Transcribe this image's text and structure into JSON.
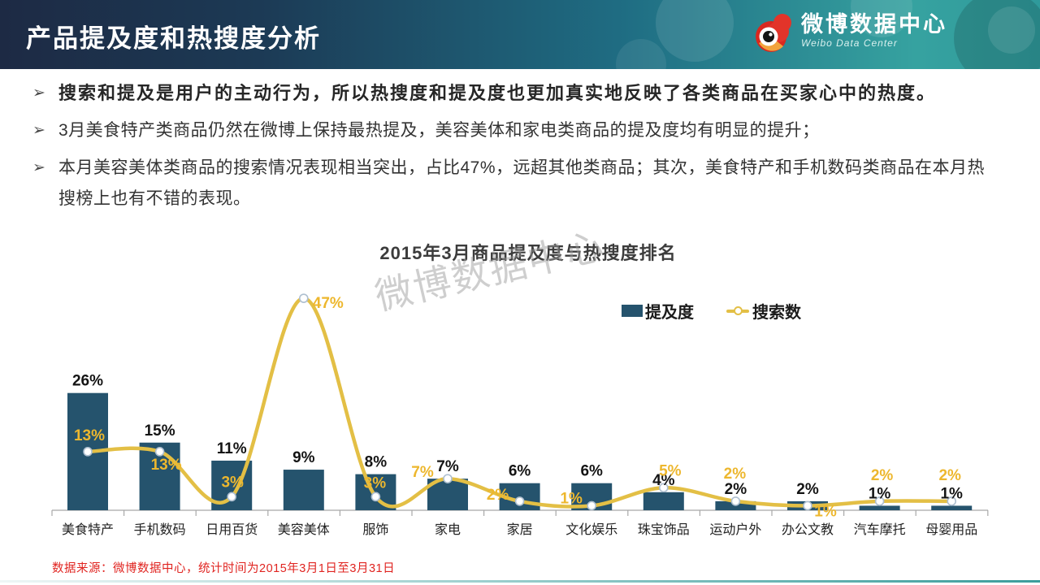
{
  "header": {
    "title": "产品提及度和热搜度分析",
    "logo": {
      "name": "微博数据中心",
      "subtitle": "Weibo Data Center"
    }
  },
  "icons": {
    "bullet_arrow": "➢"
  },
  "bullets": [
    "搜索和提及是用户的主动行为，所以热搜度和提及度也更加真实地反映了各类商品在买家心中的热度。",
    "3月美食特产类商品仍然在微博上保持最热提及，美容美体和家电类商品的提及度均有明显的提升；",
    "本月美容美体类商品的搜索情况表现相当突出，占比47%，远超其他类商品；其次，美食特产和手机数码类商品在本月热搜榜上也有不错的表现。"
  ],
  "watermark": "微博数据中心",
  "chart_data": {
    "type": "bar",
    "subtype": "bar+line combo",
    "title": "2015年3月商品提及度与热搜度排名",
    "categories": [
      "美食特产",
      "手机数码",
      "日用百货",
      "美容美体",
      "服饰",
      "家电",
      "家居",
      "文化娱乐",
      "珠宝饰品",
      "运动户外",
      "办公文教",
      "汽车摩托",
      "母婴用品"
    ],
    "series": [
      {
        "name": "提及度",
        "type": "bar",
        "color": "#25536d",
        "values": [
          26,
          15,
          11,
          9,
          8,
          7,
          6,
          6,
          4,
          2,
          2,
          1,
          1
        ],
        "labels": [
          "26%",
          "15%",
          "11%",
          "9%",
          "8%",
          "7%",
          "6%",
          "6%",
          "4%",
          "2%",
          "2%",
          "1%",
          "1%"
        ]
      },
      {
        "name": "搜索数",
        "type": "line",
        "color": "#e3bf45",
        "values": [
          13,
          13,
          3,
          47,
          3,
          7,
          2,
          1,
          5,
          2,
          1,
          2,
          2
        ],
        "labels": [
          "13%",
          "13%",
          "3%",
          "47%",
          "3%",
          "7%",
          "2%",
          "1%",
          "5%",
          "2%",
          "1%",
          "2%",
          "2%"
        ]
      }
    ],
    "ylim": [
      0,
      50
    ],
    "grid": false,
    "legend_position": "top-right",
    "label_offsets_line": [
      [
        2,
        -14
      ],
      [
        8,
        22
      ],
      [
        1,
        -12
      ],
      [
        30,
        12
      ],
      [
        -1,
        -11
      ],
      [
        -31,
        -2
      ],
      [
        -27,
        -2
      ],
      [
        -25,
        -3
      ],
      [
        8,
        -15
      ],
      [
        -1,
        -28
      ],
      [
        22,
        13
      ],
      [
        3,
        -26
      ],
      [
        -2,
        -26
      ]
    ]
  },
  "source_note": "数据来源：微博数据中心，统计时间为2015年3月1日至3月31日",
  "colors": {
    "bar": "#25536d",
    "line": "#e3bf45",
    "line_label": "#edb72e",
    "bar_label": "#141414",
    "axis": "#a8a8a8",
    "category_label": "#222222",
    "marker_stroke": "#aebfd0",
    "source": "#e02420"
  }
}
